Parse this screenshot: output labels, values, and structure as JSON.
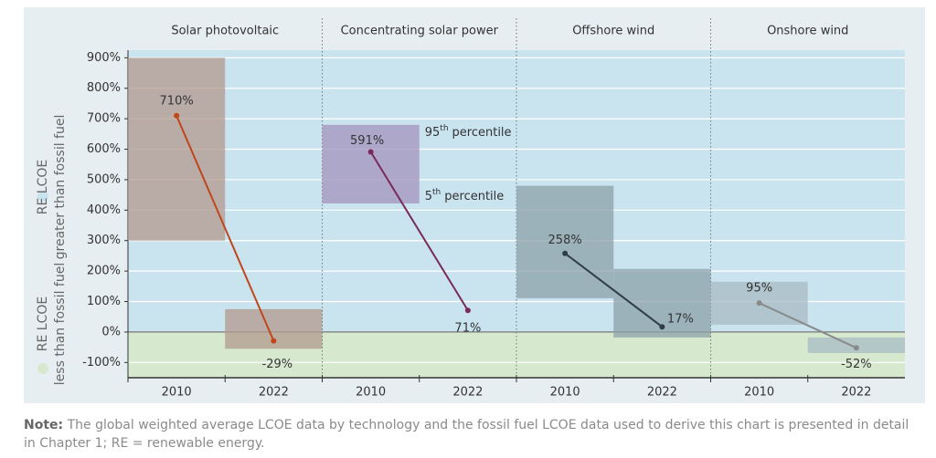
{
  "chart_data": {
    "type": "line",
    "y_axis_labels": [
      {
        "lines": [
          "RE LCOE",
          "greater than fossil fuel"
        ],
        "color": "#c9e3ef"
      },
      {
        "lines": [
          "RE LCOE",
          "less than fossil fuel"
        ],
        "color": "#d6e9cf"
      }
    ],
    "ylim": [
      -150,
      925
    ],
    "yticks": [
      {
        "value": 900,
        "label": "900%"
      },
      {
        "value": 800,
        "label": "800%"
      },
      {
        "value": 700,
        "label": "700%"
      },
      {
        "value": 600,
        "label": "600%"
      },
      {
        "value": 500,
        "label": "500%"
      },
      {
        "value": 400,
        "label": "400%"
      },
      {
        "value": 300,
        "label": "300%"
      },
      {
        "value": 200,
        "label": "200%"
      },
      {
        "value": 100,
        "label": "100%"
      },
      {
        "value": 0,
        "label": "0%"
      },
      {
        "value": -100,
        "label": "-100%"
      }
    ],
    "grid": true,
    "panels": [
      {
        "name": "Solar photovoltaic",
        "categories": [
          "2010",
          "2022"
        ],
        "values": [
          710,
          -29
        ],
        "value_labels": [
          "710%",
          "-29%"
        ],
        "ranges": [
          [
            300,
            900
          ],
          [
            -55,
            75
          ]
        ],
        "color": "#c0461c",
        "range_color": "#b3998f"
      },
      {
        "name": "Concentrating solar power",
        "categories": [
          "2010",
          "2022"
        ],
        "values": [
          591,
          71
        ],
        "value_labels": [
          "591%",
          "71%"
        ],
        "ranges": [
          [
            422,
            680
          ],
          null
        ],
        "color": "#7a2a5a",
        "range_color": "#a393bd"
      },
      {
        "name": "Offshore wind",
        "categories": [
          "2010",
          "2022"
        ],
        "values": [
          258,
          17
        ],
        "value_labels": [
          "258%",
          "17%"
        ],
        "ranges": [
          [
            111,
            480
          ],
          [
            -18,
            207
          ]
        ],
        "color": "#2f3d48",
        "range_color": "#8ca2aa"
      },
      {
        "name": "Onshore wind",
        "categories": [
          "2010",
          "2022"
        ],
        "values": [
          95,
          -52
        ],
        "value_labels": [
          "95%",
          "-52%"
        ],
        "ranges": [
          [
            24,
            165
          ],
          [
            -69,
            -18
          ]
        ],
        "color": "#8a8a8a",
        "range_color": "#a7bbc3"
      }
    ],
    "percentile_labels": [
      {
        "number": "95",
        "suffix": "th",
        "text": "percentile"
      },
      {
        "number": "5",
        "suffix": "th",
        "text": "percentile"
      }
    ],
    "note": {
      "label": "Note:",
      "text": "The global weighted average LCOE data by technology and the fossil fuel LCOE data used to derive this chart is presented in detail in Chapter 1; RE = renewable energy."
    }
  }
}
